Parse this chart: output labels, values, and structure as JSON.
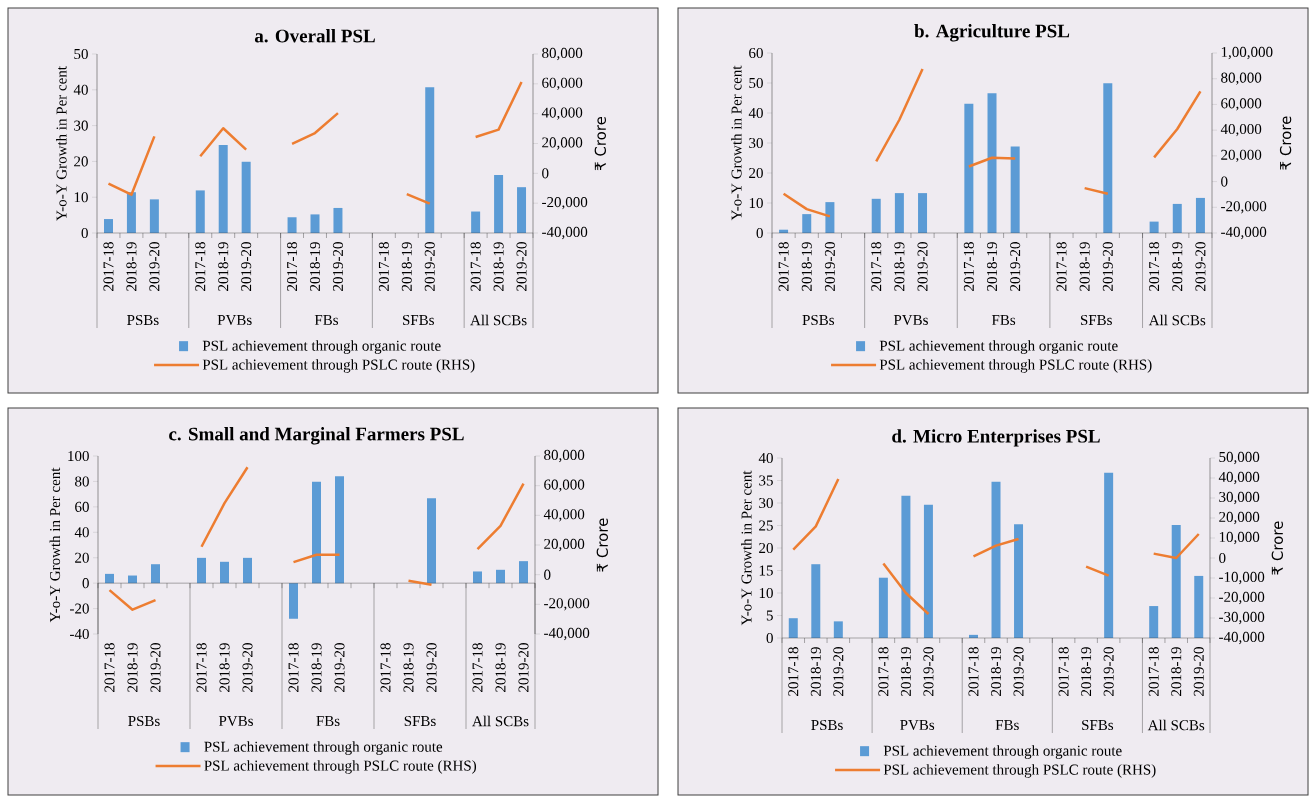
{
  "chart_data": [
    {
      "type": "bar",
      "title": "a. Overall PSL",
      "ylabel": "Y-o-Y Growth in Per cent",
      "y2label": "₹ Crore",
      "legend": "bottom",
      "categories": [
        "2017-18",
        "2018-19",
        "2019-20",
        null,
        "2017-18",
        "2018-19",
        "2019-20",
        null,
        "2017-18",
        "2018-19",
        "2019-20",
        null,
        "2017-18",
        "2018-19",
        "2019-20",
        null,
        "2017-18",
        "2018-19",
        "2019-20"
      ],
      "annotations": [
        "PSBs",
        "PVBs",
        "FBs",
        "SFBs",
        "All SCBs"
      ],
      "ylim": [
        0,
        50
      ],
      "yticks": [
        0,
        10,
        20,
        30,
        40,
        50
      ],
      "y2lim": [
        -40000,
        80000
      ],
      "y2ticks": [
        {
          "value": -40000,
          "label": "-40,000"
        },
        {
          "value": -20000,
          "label": "-20,000"
        },
        {
          "value": 0,
          "label": "0"
        },
        {
          "value": 20000,
          "label": "20,000"
        },
        {
          "value": 40000,
          "label": "40,000"
        },
        {
          "value": 60000,
          "label": "60,000"
        },
        {
          "value": 80000,
          "label": "80,000"
        }
      ],
      "series": [
        {
          "name": "PSL achievement through organic route",
          "color": "#5b9bd5",
          "values": [
            3.9,
            11.4,
            9.4,
            null,
            11.9,
            24.6,
            19.9,
            null,
            4.4,
            5.2,
            7.0,
            null,
            null,
            null,
            40.7,
            null,
            6.0,
            16.2,
            12.8
          ]
        },
        {
          "name": "PSL achievement through PSLC route (RHS)",
          "type": "line",
          "axis": "y2",
          "color": "#ed7d31",
          "values": [
            -6900,
            -14300,
            24800,
            null,
            11400,
            30200,
            15900,
            null,
            19700,
            27000,
            40400,
            null,
            null,
            -13900,
            -20300,
            null,
            24400,
            29300,
            61200
          ]
        }
      ]
    },
    {
      "type": "bar",
      "title": "b. Agriculture PSL",
      "ylabel": "Y-o-Y Growth in Per cent",
      "y2label": "₹ Crore",
      "legend": "bottom",
      "categories": [
        "2017-18",
        "2018-19",
        "2019-20",
        null,
        "2017-18",
        "2018-19",
        "2019-20",
        null,
        "2017-18",
        "2018-19",
        "2019-20",
        null,
        "2017-18",
        "2018-19",
        "2019-20",
        null,
        "2017-18",
        "2018-19",
        "2019-20"
      ],
      "annotations": [
        "PSBs",
        "PVBs",
        "FBs",
        "SFBs",
        "All SCBs"
      ],
      "ylim": [
        0,
        60
      ],
      "yticks": [
        0,
        10,
        20,
        30,
        40,
        50,
        60
      ],
      "y2lim": [
        -40000,
        100000
      ],
      "y2ticks": [
        {
          "value": -40000,
          "label": "-40,000"
        },
        {
          "value": -20000,
          "label": "-20,000"
        },
        {
          "value": 0,
          "label": "0"
        },
        {
          "value": 20000,
          "label": "20,000"
        },
        {
          "value": 40000,
          "label": "40,000"
        },
        {
          "value": 60000,
          "label": "60,000"
        },
        {
          "value": 80000,
          "label": "80,000"
        },
        {
          "value": 100000,
          "label": "1,00,000"
        }
      ],
      "series": [
        {
          "name": "PSL achievement through organic route",
          "color": "#5b9bd5",
          "values": [
            1.1,
            6.3,
            10.3,
            null,
            11.4,
            13.3,
            13.3,
            null,
            43.1,
            46.6,
            28.8,
            null,
            null,
            null,
            49.9,
            null,
            3.8,
            9.7,
            11.7
          ]
        },
        {
          "name": "PSL achievement through PSLC route (RHS)",
          "type": "line",
          "axis": "y2",
          "color": "#ed7d31",
          "values": [
            -9500,
            -21400,
            -27100,
            null,
            15700,
            48100,
            87500,
            null,
            11700,
            18500,
            18000,
            null,
            null,
            -5100,
            -9500,
            null,
            18800,
            40900,
            70200
          ]
        }
      ]
    },
    {
      "type": "bar",
      "title": "c. Small and Marginal Farmers PSL",
      "ylabel": "Y-o-Y Growth in Per cent",
      "y2label": "₹ Crore",
      "legend": "bottom",
      "categories": [
        "2017-18",
        "2018-19",
        "2019-20",
        null,
        "2017-18",
        "2018-19",
        "2019-20",
        null,
        "2017-18",
        "2018-19",
        "2019-20",
        null,
        "2017-18",
        "2018-19",
        "2019-20",
        null,
        "2017-18",
        "2018-19",
        "2019-20"
      ],
      "annotations": [
        "PSBs",
        "PVBs",
        "FBs",
        "SFBs",
        "All SCBs"
      ],
      "ylim": [
        -40,
        100
      ],
      "yticks": [
        -40,
        -20,
        0,
        20,
        40,
        60,
        80,
        100
      ],
      "y2lim": [
        -40000,
        80000
      ],
      "y2ticks": [
        {
          "value": -40000,
          "label": "-40,000"
        },
        {
          "value": -20000,
          "label": "-20,000"
        },
        {
          "value": 0,
          "label": "0"
        },
        {
          "value": 20000,
          "label": "20,000"
        },
        {
          "value": 40000,
          "label": "40,000"
        },
        {
          "value": 60000,
          "label": "60,000"
        },
        {
          "value": 80000,
          "label": "80,000"
        }
      ],
      "series": [
        {
          "name": "PSL achievement through organic route",
          "color": "#5b9bd5",
          "values": [
            7.3,
            6.0,
            14.9,
            null,
            19.9,
            16.8,
            19.9,
            null,
            -28.0,
            79.8,
            84.0,
            null,
            null,
            null,
            66.8,
            null,
            9.2,
            10.5,
            17.3
          ]
        },
        {
          "name": "PSL achievement through PSLC route (RHS)",
          "type": "line",
          "axis": "y2",
          "color": "#ed7d31",
          "values": [
            -10400,
            -23600,
            -17100,
            null,
            18800,
            48200,
            72400,
            null,
            8500,
            13400,
            13400,
            null,
            null,
            -4100,
            -6800,
            null,
            17200,
            32900,
            61400
          ]
        }
      ]
    },
    {
      "type": "bar",
      "title": "d. Micro Enterprises PSL",
      "ylabel": "Y-o-Y Growth in Per cent",
      "y2label": "₹ Crore",
      "legend": "bottom",
      "categories": [
        "2017-18",
        "2018-19",
        "2019-20",
        null,
        "2017-18",
        "2018-19",
        "2019-20",
        null,
        "2017-18",
        "2018-19",
        "2019-20",
        null,
        "2017-18",
        "2018-19",
        "2019-20",
        null,
        "2017-18",
        "2018-19",
        "2019-20"
      ],
      "annotations": [
        "PSBs",
        "PVBs",
        "FBs",
        "SFBs",
        "All SCBs"
      ],
      "ylim": [
        0,
        40
      ],
      "yticks": [
        0,
        5,
        10,
        15,
        20,
        25,
        30,
        35,
        40
      ],
      "y2lim": [
        -40000,
        50000
      ],
      "y2ticks": [
        {
          "value": -40000,
          "label": "-40,000"
        },
        {
          "value": -30000,
          "label": "-30,000"
        },
        {
          "value": -20000,
          "label": "-20,000"
        },
        {
          "value": -10000,
          "label": "-10,000"
        },
        {
          "value": 0,
          "label": "0"
        },
        {
          "value": 10000,
          "label": "10,000"
        },
        {
          "value": 20000,
          "label": "20,000"
        },
        {
          "value": 30000,
          "label": "30,000"
        },
        {
          "value": 40000,
          "label": "40,000"
        },
        {
          "value": 50000,
          "label": "50,000"
        }
      ],
      "series": [
        {
          "name": "PSL achievement through organic route",
          "color": "#5b9bd5",
          "values": [
            4.4,
            16.4,
            3.7,
            null,
            13.4,
            31.6,
            29.6,
            null,
            0.7,
            34.7,
            25.3,
            null,
            null,
            null,
            36.7,
            null,
            7.1,
            25.1,
            13.8
          ]
        },
        {
          "name": "PSL achievement through PSLC route (RHS)",
          "type": "line",
          "axis": "y2",
          "color": "#ed7d31",
          "values": [
            4200,
            15800,
            39500,
            null,
            -2800,
            -17500,
            -28000,
            null,
            800,
            6200,
            9500,
            null,
            null,
            -4300,
            -8800,
            null,
            2200,
            0,
            12000
          ]
        }
      ]
    }
  ]
}
